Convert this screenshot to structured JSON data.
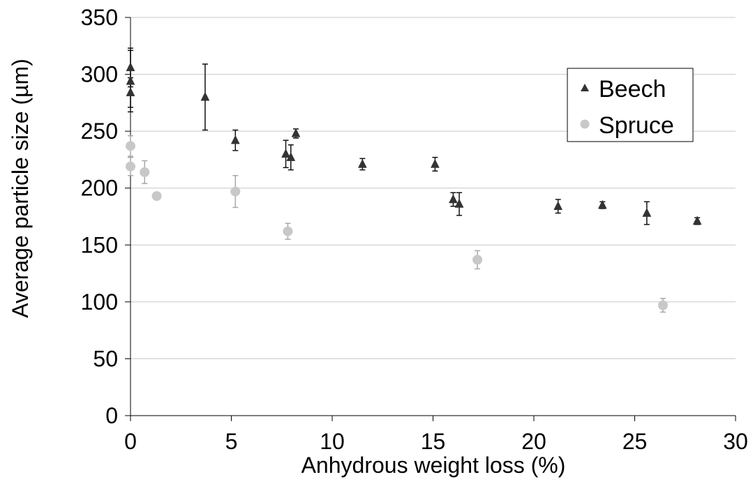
{
  "chart_data": {
    "type": "scatter",
    "title": "",
    "xlabel": "Anhydrous weight loss (%)",
    "ylabel": "Average particle size (µm)",
    "xlim": [
      0,
      30
    ],
    "ylim": [
      0,
      350
    ],
    "xticks": [
      0,
      5,
      10,
      15,
      20,
      25,
      30
    ],
    "yticks": [
      0,
      50,
      100,
      150,
      200,
      250,
      300,
      350
    ],
    "grid": {
      "horizontal": true,
      "vertical": false
    },
    "legend": {
      "placement": "top-right"
    },
    "series": [
      {
        "name": "Beech",
        "marker": "triangle",
        "color": "#333333",
        "points": [
          {
            "x": 0.0,
            "y": 306,
            "error": 17
          },
          {
            "x": 0.0,
            "y": 294,
            "error": 27
          },
          {
            "x": 0.0,
            "y": 284,
            "error": 13
          },
          {
            "x": 3.7,
            "y": 280,
            "error": 29
          },
          {
            "x": 5.2,
            "y": 242,
            "error": 9
          },
          {
            "x": 7.7,
            "y": 230,
            "error": 12
          },
          {
            "x": 7.95,
            "y": 227,
            "error": 11
          },
          {
            "x": 8.2,
            "y": 248,
            "error": 4
          },
          {
            "x": 11.5,
            "y": 221,
            "error": 5
          },
          {
            "x": 15.1,
            "y": 221,
            "error": 6
          },
          {
            "x": 16.0,
            "y": 190,
            "error": 6
          },
          {
            "x": 16.3,
            "y": 186,
            "error": 10
          },
          {
            "x": 21.2,
            "y": 184,
            "error": 6
          },
          {
            "x": 23.4,
            "y": 185,
            "error": 3
          },
          {
            "x": 25.6,
            "y": 178,
            "error": 10
          },
          {
            "x": 28.1,
            "y": 171,
            "error": 3
          }
        ]
      },
      {
        "name": "Spruce",
        "marker": "circle",
        "color": "#c8c8c8",
        "points": [
          {
            "x": 0.0,
            "y": 237,
            "error": 9
          },
          {
            "x": 0.0,
            "y": 219,
            "error": 8
          },
          {
            "x": 0.7,
            "y": 214,
            "error": 10
          },
          {
            "x": 1.3,
            "y": 193,
            "error": 0
          },
          {
            "x": 5.2,
            "y": 197,
            "error": 14
          },
          {
            "x": 7.8,
            "y": 162,
            "error": 7
          },
          {
            "x": 17.2,
            "y": 137,
            "error": 8
          },
          {
            "x": 26.4,
            "y": 97,
            "error": 6
          }
        ]
      }
    ]
  }
}
